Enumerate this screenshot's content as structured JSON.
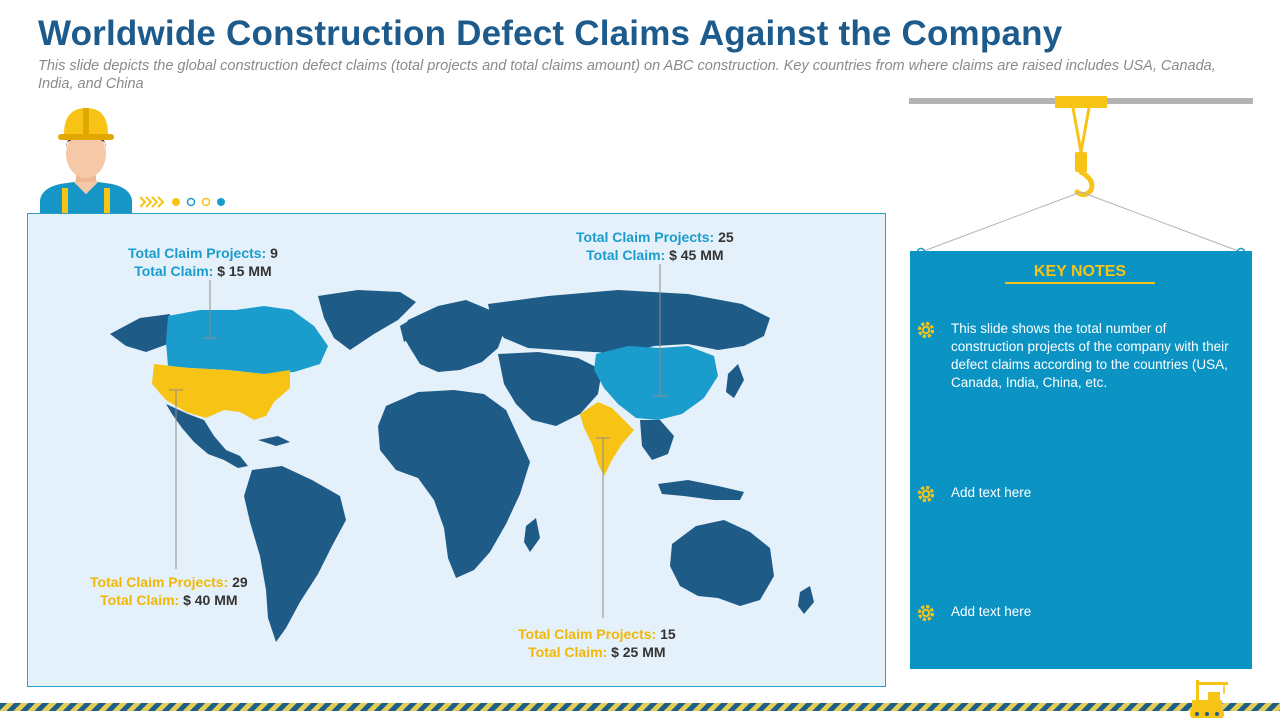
{
  "header": {
    "title": "Worldwide Construction Defect Claims Against the Company",
    "subtitle": "This slide depicts the global construction defect claims (total projects and total claims amount) on ABC construction. Key countries from where  claims are raised includes USA, Canada, India, and China"
  },
  "colors": {
    "title": "#1d5b8c",
    "map_base": "#1f5b87",
    "highlight_blue": "#1a9ccc",
    "highlight_yellow": "#f7c416",
    "notes_panel": "#0b93c4"
  },
  "map": {
    "callouts": [
      {
        "projects_label": "Total Claim Projects:",
        "projects_value": "9",
        "claim_label": "Total Claim:",
        "claim_value": "$ 15 MM"
      },
      {
        "projects_label": "Total Claim Projects:",
        "projects_value": "29",
        "claim_label": "Total Claim:",
        "claim_value": "$ 40 MM"
      },
      {
        "projects_label": "Total Claim Projects:",
        "projects_value": "25",
        "claim_label": "Total Claim:",
        "claim_value": "$ 45 MM"
      },
      {
        "projects_label": "Total Claim Projects:",
        "projects_value": "15",
        "claim_label": "Total Claim:",
        "claim_value": "$ 25 MM"
      }
    ]
  },
  "notes": {
    "title": "KEY NOTES",
    "items": [
      {
        "text": "This slide shows the total number of construction projects of the company with their defect claims according to the countries (USA, Canada, India, China, etc."
      },
      {
        "text": "Add text here"
      },
      {
        "text": "Add text here"
      }
    ]
  },
  "icons": [
    "worker-icon",
    "arrows-icon",
    "crane-hook-icon",
    "gear-icon",
    "crane-truck-icon"
  ]
}
